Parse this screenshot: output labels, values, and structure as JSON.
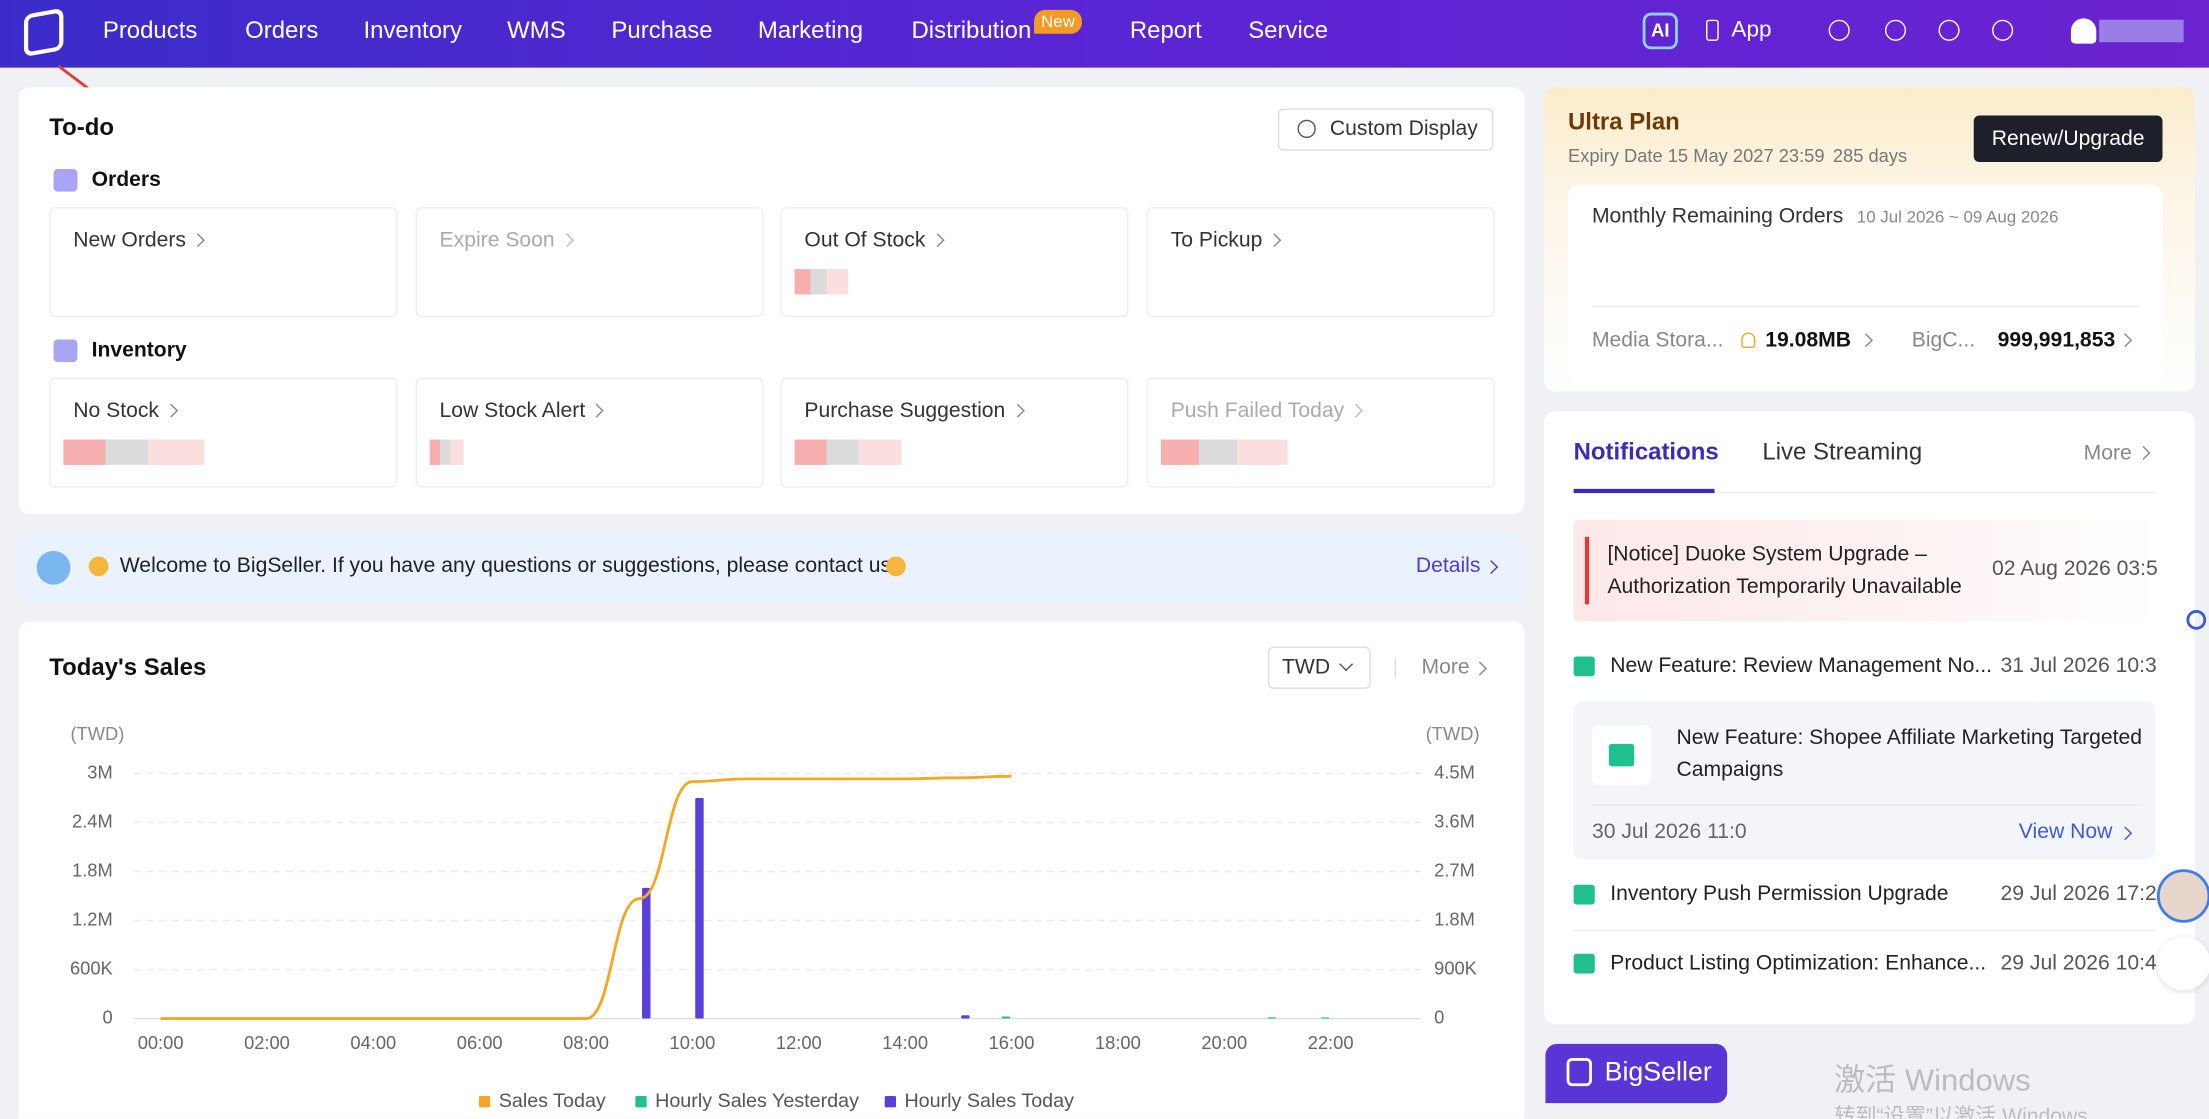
{
  "nav": {
    "items": [
      "Products",
      "Orders",
      "Inventory",
      "WMS",
      "Purchase",
      "Marketing",
      "Distribution",
      "Report",
      "Service"
    ],
    "badge": "New",
    "ai": "AI",
    "app": "App"
  },
  "todo": {
    "title": "To-do",
    "custom": "Custom Display",
    "groups": [
      {
        "name": "Orders",
        "cards": [
          "New Orders",
          "Expire Soon",
          "Out Of Stock",
          "To Pickup"
        ]
      },
      {
        "name": "Inventory",
        "cards": [
          "No Stock",
          "Low Stock Alert",
          "Purchase Suggestion",
          "Push Failed Today"
        ]
      }
    ]
  },
  "banner": {
    "text": "Welcome to BigSeller. If you have any questions or suggestions, please contact us",
    "link": "Details"
  },
  "sales": {
    "title": "Today's Sales",
    "currency": "TWD",
    "more": "More"
  },
  "plan": {
    "title": "Ultra Plan",
    "expiry": "Expiry Date 15 May 2027 23:59",
    "days": "285 days",
    "button": "Renew/Upgrade",
    "monthly": "Monthly Remaining Orders",
    "period": "10 Jul 2026 ~ 09 Aug 2026",
    "media": "Media Stora...",
    "media_value": "19.08MB",
    "big": "BigC...",
    "big_value": "999,991,853"
  },
  "notifications": {
    "tabs": [
      "Notifications",
      "Live Streaming"
    ],
    "more": "More",
    "items": [
      {
        "title": "[Notice] Duoke System Upgrade – Authorization Temporarily Unavailable",
        "date": "02 Aug 2026 03:5"
      },
      {
        "title": "New Feature: Review Management No...",
        "date": "31 Jul 2026 10:3"
      },
      {
        "title": "Inventory Push Permission Upgrade",
        "date": "29 Jul 2026 17:2"
      },
      {
        "title": "Product Listing Optimization: Enhance...",
        "date": "29 Jul 2026 10:4"
      }
    ],
    "featured": {
      "title": "New Feature: Shopee Affiliate Marketing Targeted Campaigns",
      "date": "30 Jul 2026 11:0",
      "action": "View Now"
    }
  },
  "footer": {
    "logo": "BigSeller",
    "watermark": [
      "激活 Windows",
      "转到“设置”以激活 Windows"
    ]
  },
  "chart_data": {
    "type": "bar",
    "ylabel": "(TWD)",
    "y2label": "(TWD)",
    "categories": [
      "00:00",
      null,
      "02:00",
      null,
      "04:00",
      null,
      "06:00",
      null,
      "08:00",
      null,
      "10:00",
      null,
      "12:00",
      null,
      "14:00",
      null,
      "16:00",
      null,
      "18:00",
      null,
      "20:00",
      null,
      "22:00",
      null
    ],
    "ylim": [
      0,
      3000000
    ],
    "yticks": [
      0,
      {
        "value": 600000,
        "label": "600K"
      },
      {
        "value": 1200000,
        "label": "1.2M"
      },
      {
        "value": 1800000,
        "label": "1.8M"
      },
      {
        "value": 2400000,
        "label": "2.4M"
      },
      {
        "value": 3000000,
        "label": "3M"
      }
    ],
    "y2lim": [
      0,
      4500000
    ],
    "y2ticks": [
      0,
      {
        "value": 900000,
        "label": "900K"
      },
      {
        "value": 1800000,
        "label": "1.8M"
      },
      {
        "value": 2700000,
        "label": "2.7M"
      },
      {
        "value": 3600000,
        "label": "3.6M"
      },
      {
        "value": 4500000,
        "label": "4.5M"
      }
    ],
    "grid": true,
    "legend": "bottom",
    "series": [
      {
        "name": "Sales Today",
        "color": "#f5a623",
        "type": "line",
        "axis": "y2",
        "values": [
          0,
          0,
          0,
          0,
          0,
          0,
          0,
          0,
          0,
          2200000,
          4350000,
          4400000,
          4400000,
          4400000,
          4400000,
          4420000,
          4450000,
          null,
          null,
          null,
          null,
          null,
          null,
          null
        ]
      },
      {
        "name": "Hourly Sales Yesterday",
        "color": "#1fbf8f",
        "type": "bar",
        "values": [
          0,
          0,
          0,
          0,
          0,
          0,
          0,
          0,
          0,
          0,
          0,
          0,
          0,
          0,
          0,
          0,
          25000,
          0,
          0,
          0,
          0,
          15000,
          15000,
          0
        ]
      },
      {
        "name": "Hourly Sales Today",
        "color": "#5b3fd9",
        "type": "bar",
        "values": [
          0,
          0,
          0,
          0,
          0,
          0,
          0,
          0,
          0,
          1600000,
          2700000,
          0,
          0,
          0,
          0,
          40000,
          0,
          0,
          0,
          0,
          0,
          0,
          0,
          0
        ]
      }
    ]
  }
}
